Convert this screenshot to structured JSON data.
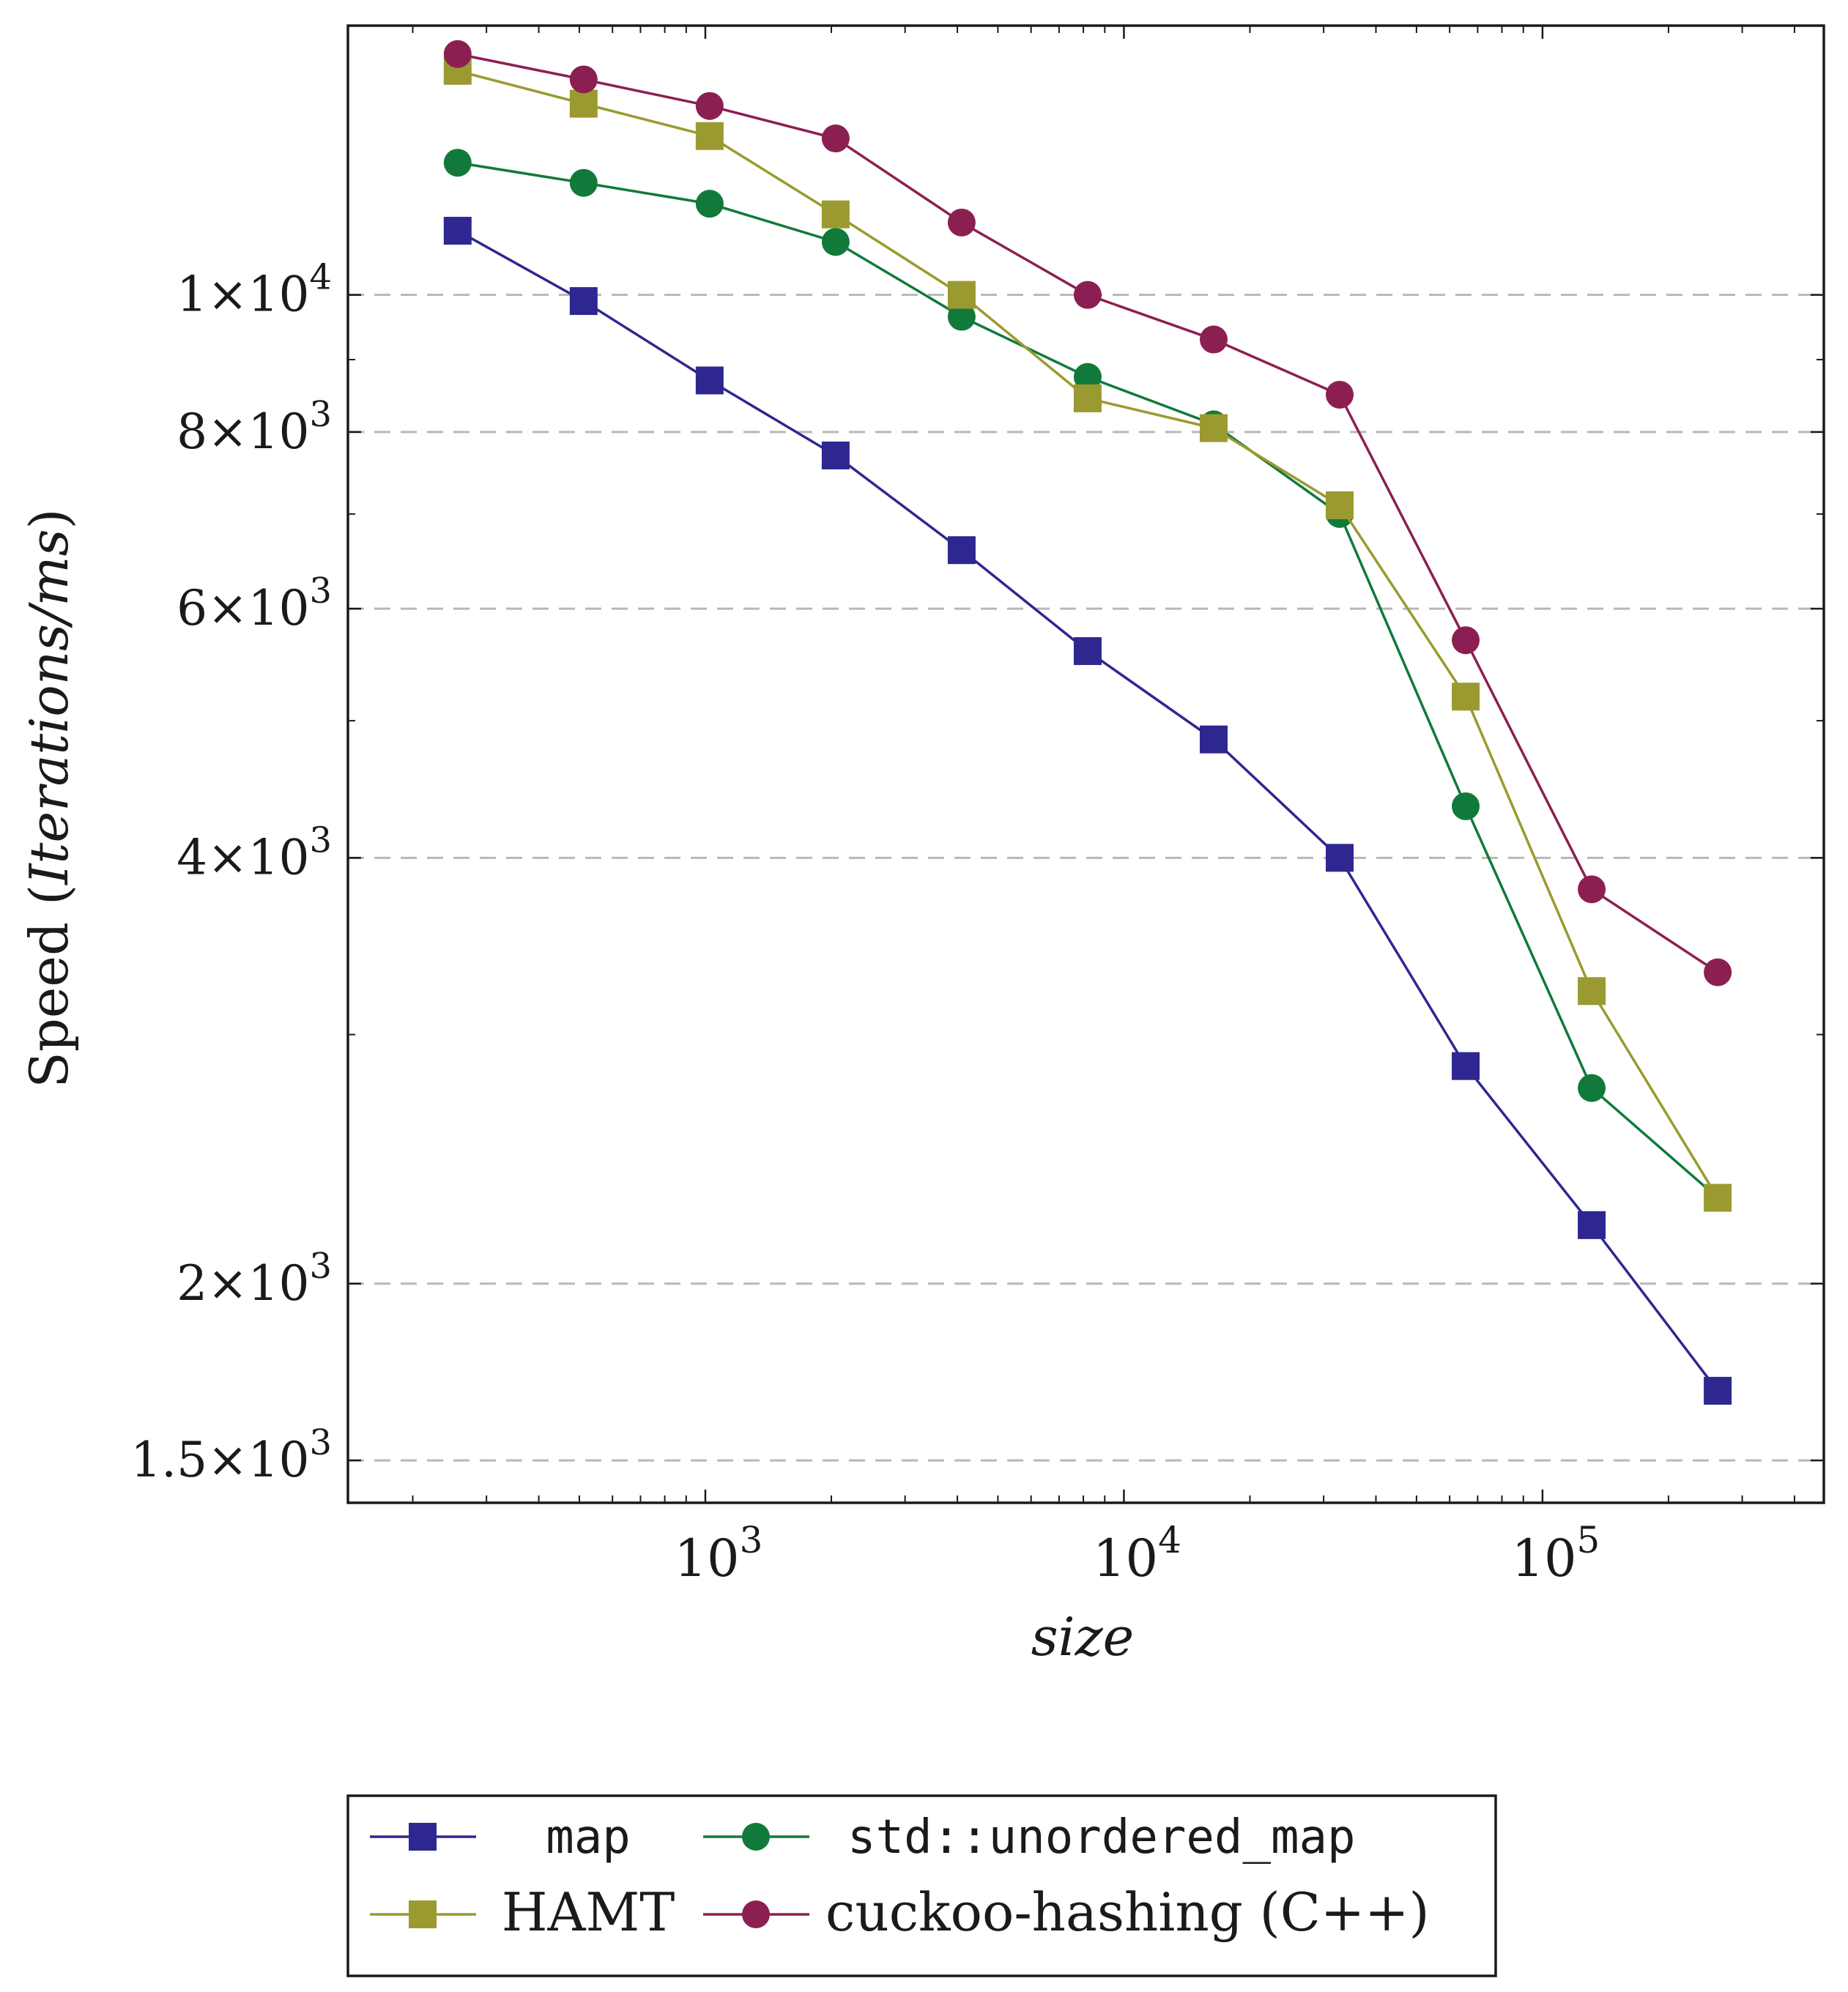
{
  "chart_data": {
    "type": "line",
    "xscale": "log",
    "yscale": "log",
    "xlabel": "size",
    "ylabel_main": "Speed (",
    "ylabel_italic": "Iterations/ms",
    "ylabel_close": ")",
    "xlim": [
      140,
      470000
    ],
    "ylim": [
      1400,
      15500
    ],
    "x": [
      256,
      512,
      1024,
      2048,
      4096,
      8192,
      16384,
      32768,
      65536,
      131072,
      262144
    ],
    "x_ticks": [
      {
        "value": 1000,
        "base": "10",
        "exp": "3"
      },
      {
        "value": 10000,
        "base": "10",
        "exp": "4"
      },
      {
        "value": 100000,
        "base": "10",
        "exp": "5"
      }
    ],
    "y_ticks": [
      {
        "value": 1500,
        "mantissa": "1.5",
        "times": "×",
        "base": "10",
        "exp": "3"
      },
      {
        "value": 2000,
        "mantissa": "2",
        "times": "×",
        "base": "10",
        "exp": "3"
      },
      {
        "value": 4000,
        "mantissa": "4",
        "times": "×",
        "base": "10",
        "exp": "3"
      },
      {
        "value": 6000,
        "mantissa": "6",
        "times": "×",
        "base": "10",
        "exp": "3"
      },
      {
        "value": 8000,
        "mantissa": "8",
        "times": "×",
        "base": "10",
        "exp": "3"
      },
      {
        "value": 10000,
        "mantissa": "1",
        "times": "×",
        "base": "10",
        "exp": "4"
      }
    ],
    "grid": "y-major-dashed",
    "legend_position": "bottom-center",
    "series": [
      {
        "name": "map",
        "mono": true,
        "color": "#2e2790",
        "marker": "square",
        "values": [
          11100,
          9900,
          8700,
          7700,
          6600,
          5600,
          4850,
          4000,
          2850,
          2200,
          1680
        ]
      },
      {
        "name": "std::unordered_map",
        "mono": true,
        "color": "#117a3a",
        "marker": "circle",
        "values": [
          12400,
          12000,
          11600,
          10900,
          9650,
          8750,
          8100,
          7000,
          4350,
          2750,
          2300
        ]
      },
      {
        "name": "HAMT",
        "mono": false,
        "color": "#9a9a30",
        "marker": "square",
        "values": [
          14400,
          13650,
          12950,
          11400,
          10000,
          8450,
          8050,
          7100,
          5200,
          3220,
          2300
        ]
      },
      {
        "name": "cuckoo-hashing (C++)",
        "mono": false,
        "color": "#8c1f52",
        "marker": "circle",
        "values": [
          14800,
          14200,
          13600,
          12900,
          11250,
          10000,
          9300,
          8500,
          5700,
          3800,
          3320
        ]
      }
    ]
  }
}
